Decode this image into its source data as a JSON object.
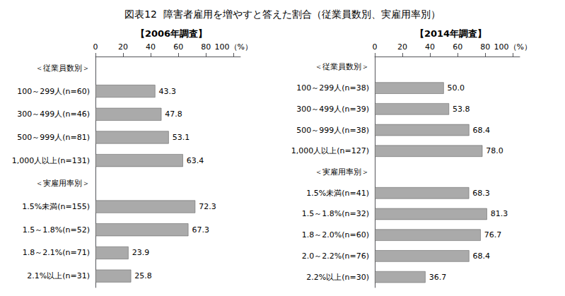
{
  "title": "図表12  障害者雇用を増やすと答えた割合（従業員数別、実雇用率別）",
  "chart_data": [
    {
      "type": "bar",
      "title": "【2006年調査】",
      "orientation": "horizontal",
      "categories": [
        "＜従業員数別＞",
        "100～299人(n=60)",
        "300～499人(n=46)",
        "500～999人(n=81)",
        "1,000人以上(n=131)",
        "＜実雇用率別＞",
        "1.5%未満(n=155)",
        "1.5～1.8%(n=52)",
        "1.8～2.1%(n=71)",
        "2.1%以上(n=31)"
      ],
      "values": [
        null,
        43.3,
        47.8,
        53.1,
        63.4,
        null,
        72.3,
        67.3,
        23.9,
        25.8
      ],
      "color": "#aaaaaa",
      "xlim": [
        0,
        105
      ],
      "xticks": [
        0,
        20,
        40,
        60,
        80,
        {
          "value": 100,
          "label": "100（%）"
        }
      ],
      "grid": false,
      "data_labels": true
    },
    {
      "type": "bar",
      "title": "【2014年調査】",
      "orientation": "horizontal",
      "categories": [
        "＜従業員数別＞",
        "100～299人(n=38)",
        "300～499人(n=39)",
        "500～999人(n=38)",
        "1,000人以上(n=127)",
        "＜実雇用率別＞",
        "1.5%未満(n=41)",
        "1.5～1.8%(n=32)",
        "1.8～2.0%(n=60)",
        "2.0～2.2%(n=76)",
        "2.2%以上(n=30)"
      ],
      "values": [
        null,
        50.0,
        53.8,
        68.4,
        78.0,
        null,
        68.3,
        81.3,
        76.7,
        68.4,
        36.7
      ],
      "value_labels": [
        null,
        "50.0",
        "53.8",
        "68.4",
        "78.0",
        null,
        "68.3",
        "81.3",
        "76.7",
        "68.4",
        "36.7"
      ],
      "color": "#aaaaaa",
      "xlim": [
        0,
        105
      ],
      "xticks": [
        0,
        20,
        40,
        60,
        80,
        {
          "value": 100,
          "label": "100（%）"
        }
      ],
      "grid": false,
      "data_labels": true
    }
  ]
}
